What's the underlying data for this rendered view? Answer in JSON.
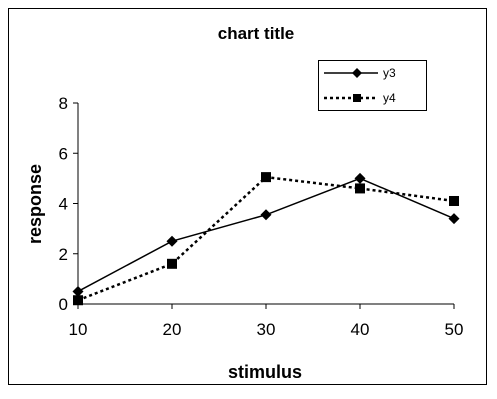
{
  "chart_data": {
    "type": "line",
    "title": "chart title",
    "xlabel": "stimulus",
    "ylabel": "response",
    "x": [
      10,
      20,
      30,
      40,
      50
    ],
    "xlim": [
      10,
      50
    ],
    "ylim": [
      0,
      8
    ],
    "xticks": [
      "10",
      "20",
      "30",
      "40",
      "50"
    ],
    "yticks": [
      "0",
      "2",
      "4",
      "6",
      "8"
    ],
    "grid": false,
    "legend_position": "top-right",
    "series": [
      {
        "name": "y3",
        "values": [
          0.5,
          2.5,
          3.55,
          5.0,
          3.4
        ],
        "line_style": "solid",
        "marker": "diamond",
        "color": "#000000"
      },
      {
        "name": "y4",
        "values": [
          0.15,
          1.6,
          5.05,
          4.6,
          4.1
        ],
        "line_style": "dotted",
        "marker": "square",
        "color": "#000000"
      }
    ]
  }
}
